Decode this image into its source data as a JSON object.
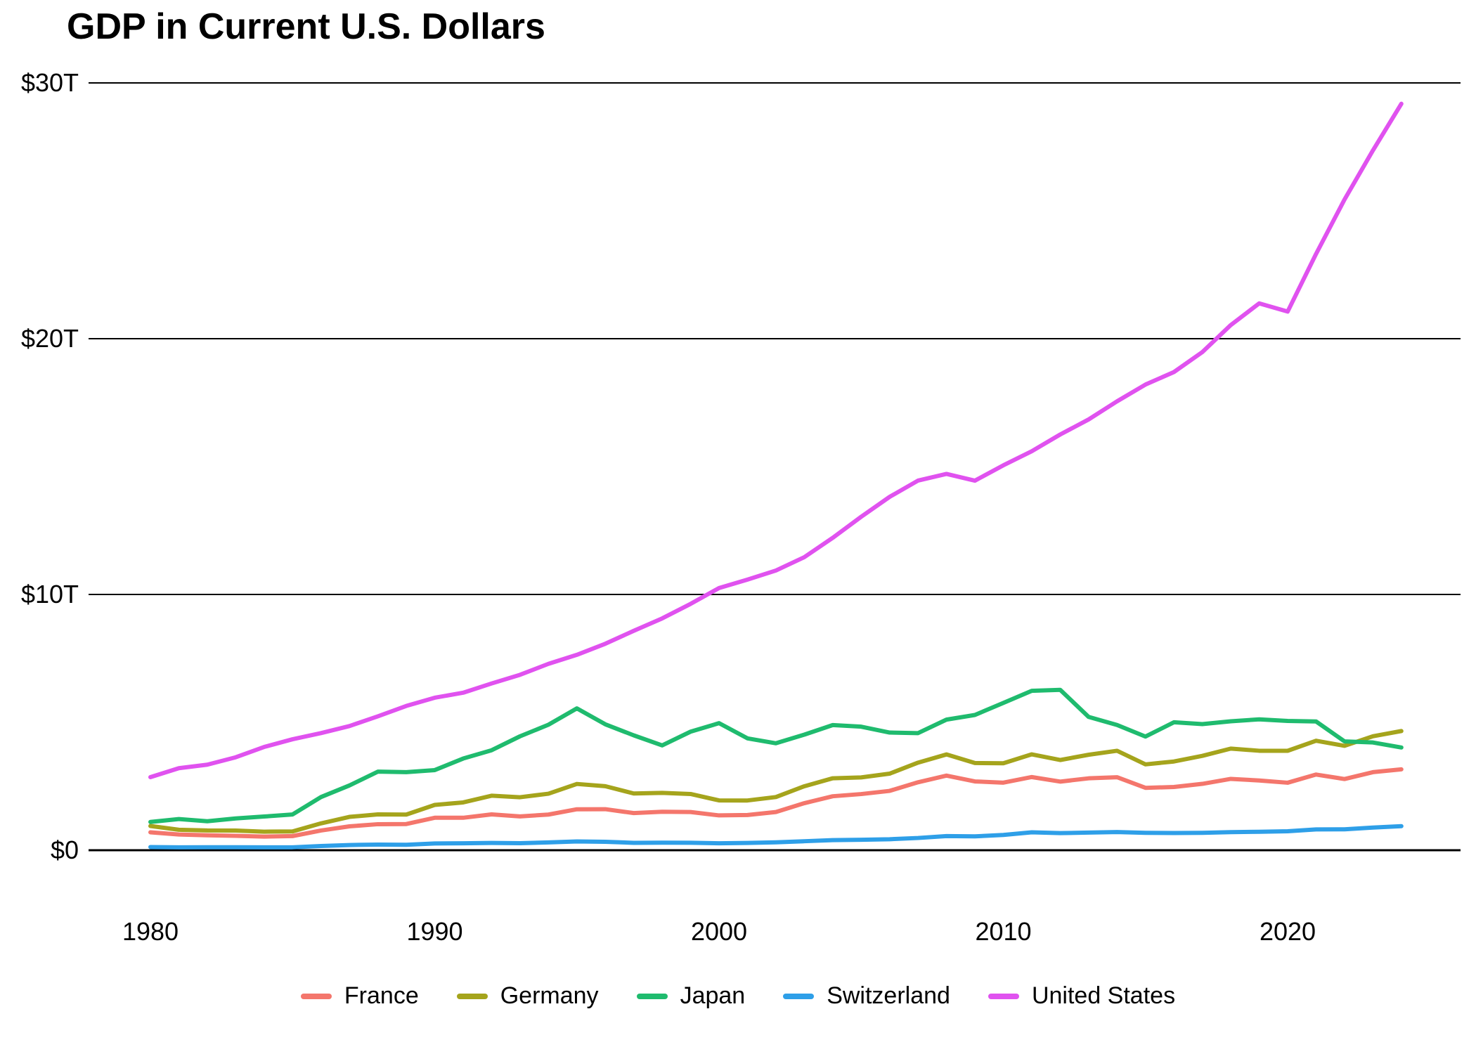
{
  "title": "GDP in Current U.S. Dollars",
  "chart_data": {
    "type": "line",
    "title": "GDP in Current U.S. Dollars",
    "unit": "trillions of current U.S. dollars",
    "grid": "horizontal",
    "legend_position": "bottom",
    "ylim": [
      0,
      30
    ],
    "xlim": [
      1980,
      2024
    ],
    "yticks": [
      {
        "value": 0,
        "label": "$0"
      },
      {
        "value": 10,
        "label": "$10T"
      },
      {
        "value": 20,
        "label": "$20T"
      },
      {
        "value": 30,
        "label": "$30T"
      }
    ],
    "xticks": [
      {
        "value": 1980,
        "label": "1980"
      },
      {
        "value": 1990,
        "label": "1990"
      },
      {
        "value": 2000,
        "label": "2000"
      },
      {
        "value": 2010,
        "label": "2010"
      },
      {
        "value": 2020,
        "label": "2020"
      }
    ],
    "x": [
      1980,
      1981,
      1982,
      1983,
      1984,
      1985,
      1986,
      1987,
      1988,
      1989,
      1990,
      1991,
      1992,
      1993,
      1994,
      1995,
      1996,
      1997,
      1998,
      1999,
      2000,
      2001,
      2002,
      2003,
      2004,
      2005,
      2006,
      2007,
      2008,
      2009,
      2010,
      2011,
      2012,
      2013,
      2014,
      2015,
      2016,
      2017,
      2018,
      2019,
      2020,
      2021,
      2022,
      2023,
      2024
    ],
    "series": [
      {
        "name": "France",
        "color": "#F4766C",
        "values": [
          0.701,
          0.616,
          0.585,
          0.563,
          0.532,
          0.553,
          0.771,
          0.934,
          1.018,
          1.025,
          1.269,
          1.269,
          1.401,
          1.323,
          1.394,
          1.601,
          1.605,
          1.452,
          1.503,
          1.493,
          1.362,
          1.376,
          1.494,
          1.84,
          2.11,
          2.196,
          2.32,
          2.657,
          2.918,
          2.69,
          2.642,
          2.861,
          2.683,
          2.811,
          2.855,
          2.439,
          2.472,
          2.595,
          2.79,
          2.728,
          2.639,
          2.959,
          2.784,
          3.052,
          3.162
        ]
      },
      {
        "name": "Germany",
        "color": "#A5A41C",
        "values": [
          0.947,
          0.8,
          0.771,
          0.77,
          0.725,
          0.736,
          1.05,
          1.304,
          1.402,
          1.394,
          1.772,
          1.869,
          2.132,
          2.072,
          2.21,
          2.591,
          2.503,
          2.218,
          2.243,
          2.199,
          1.948,
          1.945,
          2.079,
          2.501,
          2.814,
          2.846,
          2.994,
          3.425,
          3.745,
          3.411,
          3.399,
          3.749,
          3.527,
          3.733,
          3.889,
          3.357,
          3.469,
          3.69,
          3.974,
          3.889,
          3.887,
          4.281,
          4.082,
          4.456,
          4.66
        ]
      },
      {
        "name": "Japan",
        "color": "#1FBB6E",
        "values": [
          1.105,
          1.219,
          1.134,
          1.243,
          1.318,
          1.398,
          2.079,
          2.533,
          3.072,
          3.054,
          3.133,
          3.584,
          3.909,
          4.454,
          4.907,
          5.546,
          4.923,
          4.492,
          4.098,
          4.636,
          4.968,
          4.374,
          4.182,
          4.519,
          4.893,
          4.831,
          4.601,
          4.579,
          5.106,
          5.289,
          5.759,
          6.233,
          6.272,
          5.212,
          4.897,
          4.444,
          5.003,
          4.931,
          5.041,
          5.118,
          5.055,
          5.034,
          4.256,
          4.213,
          4.017
        ]
      },
      {
        "name": "Switzerland",
        "color": "#2E9FE8",
        "values": [
          0.125,
          0.115,
          0.117,
          0.116,
          0.112,
          0.115,
          0.164,
          0.204,
          0.219,
          0.212,
          0.265,
          0.27,
          0.285,
          0.276,
          0.304,
          0.342,
          0.331,
          0.29,
          0.297,
          0.293,
          0.272,
          0.286,
          0.31,
          0.352,
          0.394,
          0.408,
          0.43,
          0.479,
          0.554,
          0.542,
          0.598,
          0.7,
          0.668,
          0.689,
          0.711,
          0.68,
          0.672,
          0.68,
          0.706,
          0.722,
          0.742,
          0.813,
          0.818,
          0.885,
          0.942
        ]
      },
      {
        "name": "United States",
        "color": "#E052EF",
        "values": [
          2.857,
          3.207,
          3.344,
          3.634,
          4.038,
          4.339,
          4.58,
          4.855,
          5.236,
          5.642,
          5.963,
          6.158,
          6.52,
          6.859,
          7.287,
          7.64,
          8.073,
          8.578,
          9.063,
          9.631,
          10.251,
          10.582,
          10.936,
          11.458,
          12.214,
          13.037,
          13.815,
          14.452,
          14.713,
          14.449,
          15.049,
          15.6,
          16.254,
          16.843,
          17.551,
          18.206,
          18.695,
          19.477,
          20.533,
          21.381,
          21.06,
          23.315,
          25.44,
          27.361,
          29.185
        ]
      }
    ],
    "axis_color": "#000000",
    "grid_color": "#000000"
  }
}
